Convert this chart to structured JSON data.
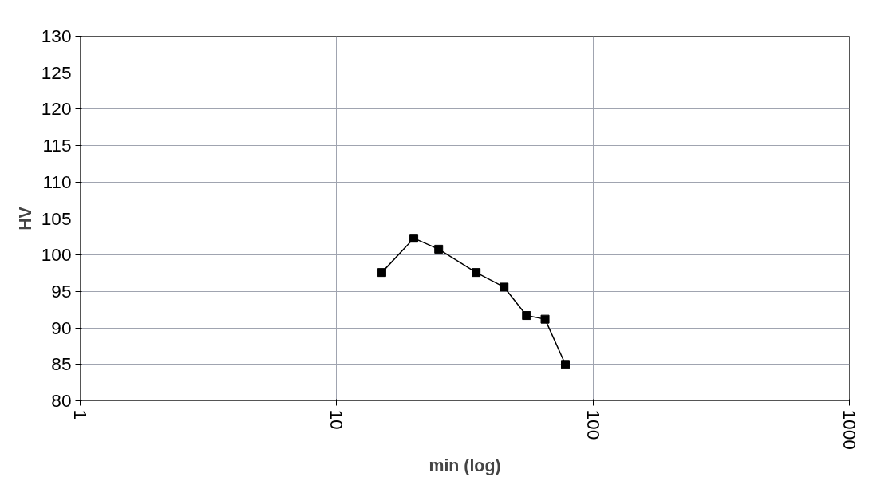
{
  "chart_data": {
    "type": "line",
    "xlabel": "min (log)",
    "ylabel": "HV",
    "log": "x",
    "x": [
      15,
      20,
      25,
      35,
      45,
      55,
      65,
      78
    ],
    "series": [
      {
        "color": "#000000",
        "values": [
          97.6,
          102.3,
          100.8,
          97.6,
          95.6,
          91.7,
          91.2,
          85.0
        ]
      }
    ],
    "xlim": [
      1,
      1000
    ],
    "xticks": [
      1,
      10,
      100,
      1000
    ],
    "ylim": [
      80,
      130
    ],
    "yticks": [
      80,
      85,
      90,
      95,
      100,
      105,
      110,
      115,
      120,
      125,
      130
    ],
    "grid": true,
    "marker": "square",
    "line_style": "solid"
  }
}
